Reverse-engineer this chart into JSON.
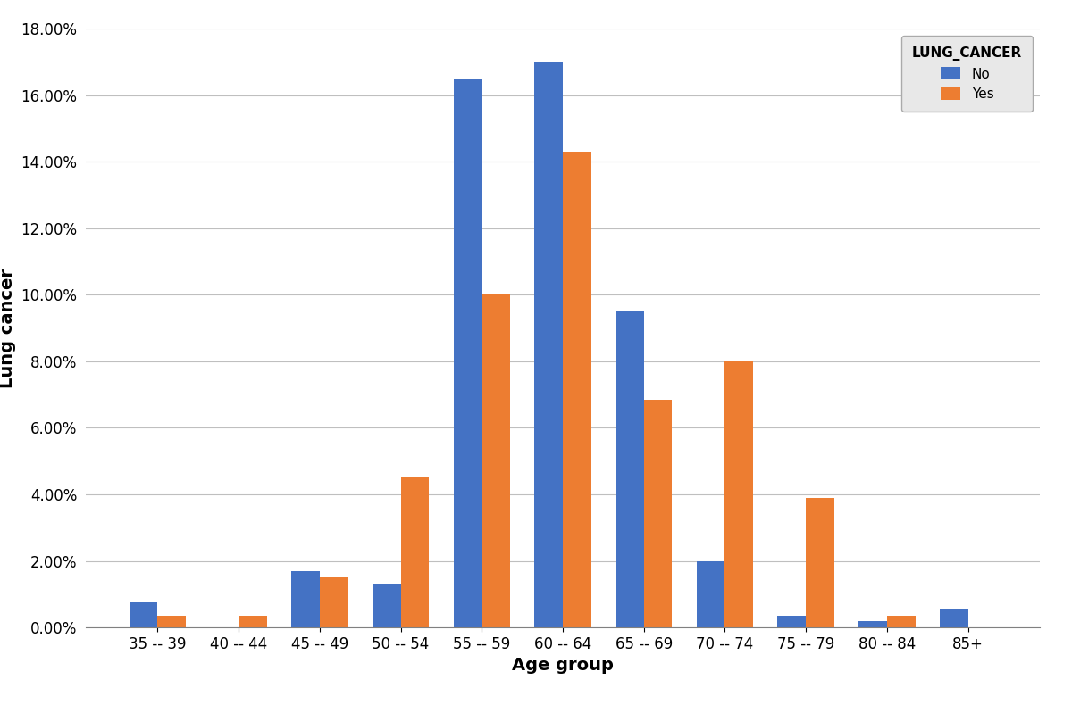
{
  "categories": [
    "35 -- 39",
    "40 -- 44",
    "45 -- 49",
    "50 -- 54",
    "55 -- 59",
    "60 -- 64",
    "65 -- 69",
    "70 -- 74",
    "75 -- 79",
    "80 -- 84",
    "85+"
  ],
  "no_values": [
    0.0075,
    0.0,
    0.017,
    0.013,
    0.165,
    0.17,
    0.095,
    0.02,
    0.0035,
    0.002,
    0.0055
  ],
  "yes_values": [
    0.0035,
    0.0035,
    0.015,
    0.045,
    0.1,
    0.143,
    0.0685,
    0.08,
    0.039,
    0.0035,
    0.0
  ],
  "color_no": "#4472C4",
  "color_yes": "#ED7D31",
  "ylabel": "Lung cancer",
  "xlabel": "Age group",
  "legend_title": "LUNG_CANCER",
  "legend_labels": [
    "No",
    "Yes"
  ],
  "ylim": [
    0,
    0.18
  ],
  "yticks": [
    0.0,
    0.02,
    0.04,
    0.06,
    0.08,
    0.1,
    0.12,
    0.14,
    0.16,
    0.18
  ],
  "bar_width": 0.35,
  "background_color": "#ffffff",
  "grid_color": "#bfbfbf",
  "axis_label_fontsize": 14,
  "tick_fontsize": 12,
  "legend_fontsize": 11,
  "legend_title_fontsize": 11
}
